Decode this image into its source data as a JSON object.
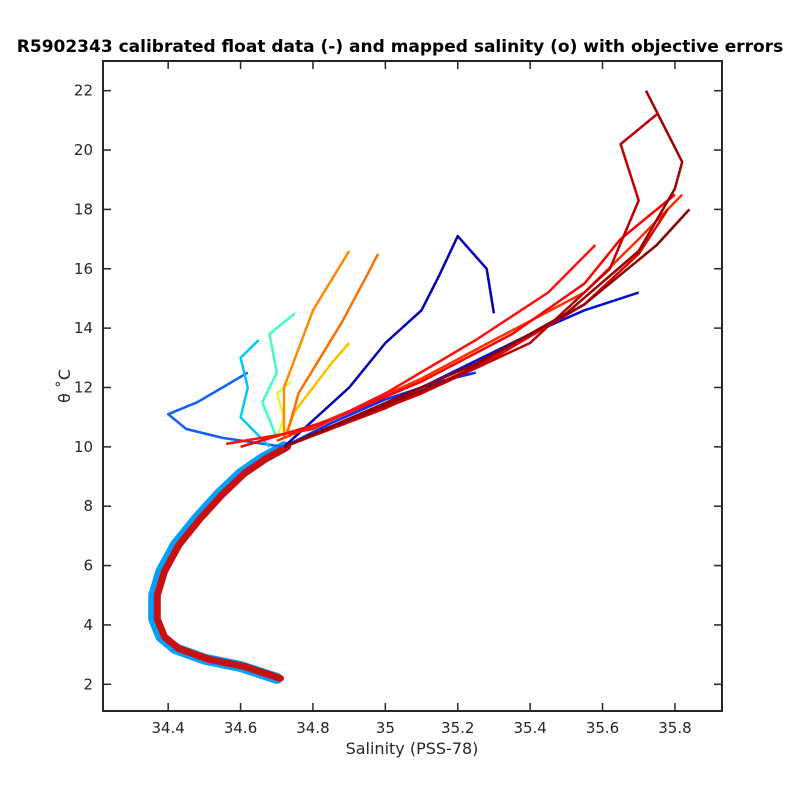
{
  "chart_data": {
    "type": "line",
    "title": "R5902343 calibrated float data (-) and mapped salinity (o) with objective errors",
    "xlabel": "Salinity (PSS-78)",
    "ylabel": "θ ˚C",
    "xlim": [
      34.22,
      35.93
    ],
    "ylim": [
      1.1,
      23.0
    ],
    "xticks": [
      34.4,
      34.6,
      34.8,
      35,
      35.2,
      35.4,
      35.6,
      35.8
    ],
    "yticks": [
      2,
      4,
      6,
      8,
      10,
      12,
      14,
      16,
      18,
      20,
      22
    ],
    "grid": false,
    "legend": "none",
    "colormap": "jet (blue = early profiles, red = late profiles)",
    "trunk": {
      "description": "deep T-S curve common to all profiles",
      "points": [
        [
          34.7,
          2.2
        ],
        [
          34.6,
          2.6
        ],
        [
          34.5,
          2.85
        ],
        [
          34.42,
          3.2
        ],
        [
          34.38,
          3.6
        ],
        [
          34.36,
          4.2
        ],
        [
          34.36,
          5.0
        ],
        [
          34.38,
          5.8
        ],
        [
          34.42,
          6.7
        ],
        [
          34.48,
          7.6
        ],
        [
          34.54,
          8.4
        ],
        [
          34.6,
          9.1
        ],
        [
          34.66,
          9.6
        ],
        [
          34.72,
          10.0
        ]
      ]
    },
    "series": [
      {
        "color": "#0010d0",
        "values": [
          [
            34.72,
            10.0
          ],
          [
            34.95,
            11.2
          ],
          [
            35.1,
            12.0
          ],
          [
            35.25,
            12.9
          ],
          [
            35.4,
            13.8
          ],
          [
            35.55,
            14.6
          ],
          [
            35.7,
            15.2
          ]
        ]
      },
      {
        "color": "#0000b8",
        "values": [
          [
            34.72,
            10.0
          ],
          [
            34.9,
            12.0
          ],
          [
            35.0,
            13.5
          ],
          [
            35.1,
            14.6
          ],
          [
            35.15,
            15.8
          ],
          [
            35.2,
            17.1
          ],
          [
            35.28,
            16.0
          ],
          [
            35.3,
            14.5
          ]
        ]
      },
      {
        "color": "#0030ff",
        "values": [
          [
            34.72,
            10.0
          ],
          [
            34.85,
            10.8
          ],
          [
            35.0,
            11.6
          ],
          [
            35.15,
            12.2
          ],
          [
            35.25,
            12.5
          ]
        ]
      },
      {
        "color": "#1060ff",
        "values": [
          [
            34.72,
            10.0
          ],
          [
            34.55,
            10.3
          ],
          [
            34.45,
            10.6
          ],
          [
            34.4,
            11.1
          ],
          [
            34.48,
            11.5
          ],
          [
            34.55,
            12.0
          ],
          [
            34.62,
            12.5
          ]
        ]
      },
      {
        "color": "#00c8ff",
        "values": [
          [
            34.68,
            10.0
          ],
          [
            34.6,
            11.0
          ],
          [
            34.62,
            12.0
          ],
          [
            34.6,
            13.0
          ],
          [
            34.65,
            13.6
          ]
        ]
      },
      {
        "color": "#40ffc0",
        "values": [
          [
            34.7,
            10.3
          ],
          [
            34.66,
            11.5
          ],
          [
            34.7,
            12.5
          ],
          [
            34.68,
            13.8
          ],
          [
            34.75,
            14.5
          ]
        ]
      },
      {
        "color": "#d8ff30",
        "values": [
          [
            34.7,
            10.3
          ],
          [
            34.72,
            11.0
          ],
          [
            34.7,
            11.8
          ],
          [
            34.74,
            12.2
          ]
        ]
      },
      {
        "color": "#ffc000",
        "values": [
          [
            34.72,
            10.3
          ],
          [
            34.75,
            11.2
          ],
          [
            34.8,
            12.0
          ],
          [
            34.85,
            12.8
          ],
          [
            34.9,
            13.5
          ]
        ]
      },
      {
        "color": "#ff8c00",
        "values": [
          [
            34.72,
            10.3
          ],
          [
            34.72,
            12.0
          ],
          [
            34.76,
            13.3
          ],
          [
            34.8,
            14.6
          ],
          [
            34.86,
            15.8
          ],
          [
            34.9,
            16.6
          ]
        ]
      },
      {
        "color": "#ff7000",
        "values": [
          [
            34.73,
            10.5
          ],
          [
            34.76,
            11.8
          ],
          [
            34.82,
            13.0
          ],
          [
            34.88,
            14.2
          ],
          [
            34.95,
            15.8
          ],
          [
            34.98,
            16.5
          ]
        ]
      },
      {
        "color": "#ff3000",
        "values": [
          [
            34.7,
            10.2
          ],
          [
            34.9,
            11.2
          ],
          [
            35.1,
            12.3
          ],
          [
            35.3,
            13.6
          ],
          [
            35.55,
            15.2
          ],
          [
            35.7,
            17.0
          ],
          [
            35.82,
            18.5
          ]
        ]
      },
      {
        "color": "#ff0000",
        "values": [
          [
            34.6,
            10.0
          ],
          [
            34.85,
            10.9
          ],
          [
            35.1,
            12.2
          ],
          [
            35.35,
            13.8
          ],
          [
            35.55,
            15.5
          ],
          [
            35.65,
            17.0
          ],
          [
            35.8,
            18.5
          ]
        ]
      },
      {
        "color": "#e00000",
        "values": [
          [
            34.72,
            10.0
          ],
          [
            35.0,
            11.3
          ],
          [
            35.3,
            13.0
          ],
          [
            35.55,
            14.8
          ],
          [
            35.7,
            16.5
          ],
          [
            35.78,
            18.0
          ]
        ]
      },
      {
        "color": "#c00000",
        "values": [
          [
            34.72,
            10.0
          ],
          [
            35.1,
            11.8
          ],
          [
            35.4,
            13.5
          ],
          [
            35.62,
            16.0
          ],
          [
            35.7,
            18.3
          ],
          [
            35.65,
            20.2
          ],
          [
            35.75,
            21.2
          ]
        ]
      },
      {
        "color": "#a00000",
        "values": [
          [
            34.72,
            10.0
          ],
          [
            35.2,
            12.4
          ],
          [
            35.5,
            14.5
          ],
          [
            35.7,
            16.6
          ],
          [
            35.8,
            18.7
          ],
          [
            35.82,
            19.6
          ],
          [
            35.72,
            22.0
          ]
        ]
      },
      {
        "color": "#8b0000",
        "values": [
          [
            34.72,
            10.0
          ],
          [
            35.25,
            12.8
          ],
          [
            35.55,
            14.8
          ],
          [
            35.75,
            16.8
          ],
          [
            35.84,
            18.0
          ]
        ]
      },
      {
        "color": "#ff1010",
        "values": [
          [
            34.56,
            10.1
          ],
          [
            34.8,
            10.6
          ],
          [
            35.0,
            11.8
          ],
          [
            35.25,
            13.6
          ],
          [
            35.45,
            15.2
          ],
          [
            35.58,
            16.8
          ]
        ]
      }
    ]
  }
}
